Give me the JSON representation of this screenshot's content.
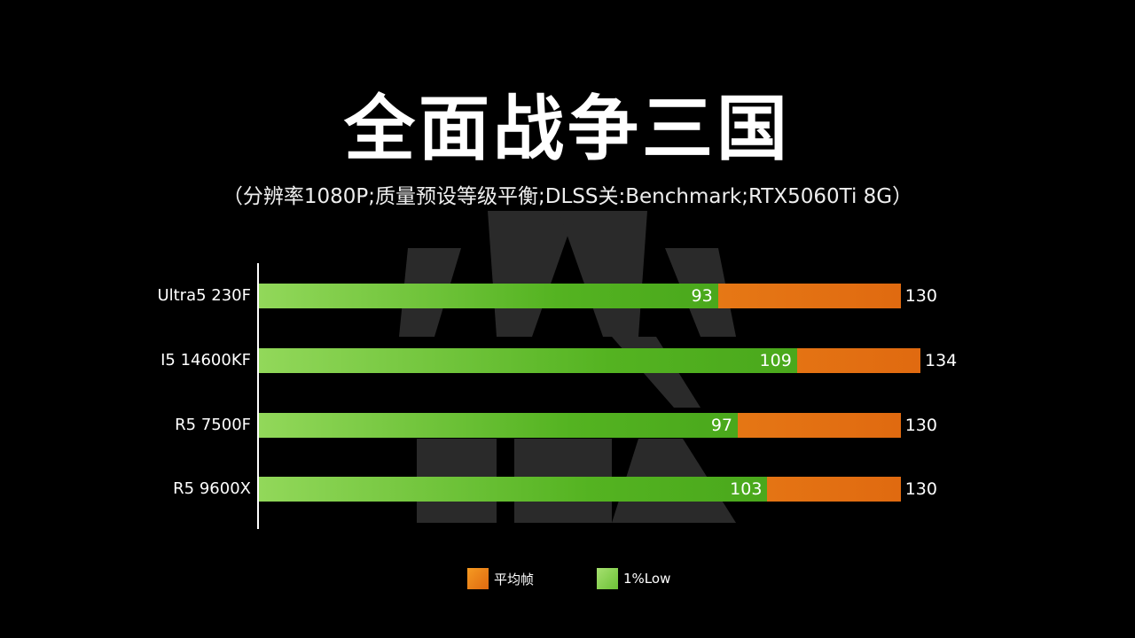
{
  "title": "全面战争三国",
  "subtitle": "（分辨率1080P;质量预设等级平衡;DLSS关:Benchmark;RTX5060Ti 8G）",
  "colors": {
    "average": "#e8771a",
    "low": "#58b825",
    "background": "#000000"
  },
  "chart_data": {
    "type": "bar",
    "orientation": "horizontal",
    "categories": [
      "Ultra5 230F",
      "I5 14600KF",
      "R5 7500F",
      "R5 9600X"
    ],
    "series": [
      {
        "name": "平均帧",
        "values": [
          130,
          134,
          130,
          130
        ]
      },
      {
        "name": "1%Low",
        "values": [
          93,
          109,
          97,
          103
        ]
      }
    ],
    "overlay": true,
    "grid": false,
    "legend_position": "bottom"
  },
  "legend": [
    {
      "label": "平均帧",
      "key": "average"
    },
    {
      "label": "1%Low",
      "key": "low"
    }
  ]
}
